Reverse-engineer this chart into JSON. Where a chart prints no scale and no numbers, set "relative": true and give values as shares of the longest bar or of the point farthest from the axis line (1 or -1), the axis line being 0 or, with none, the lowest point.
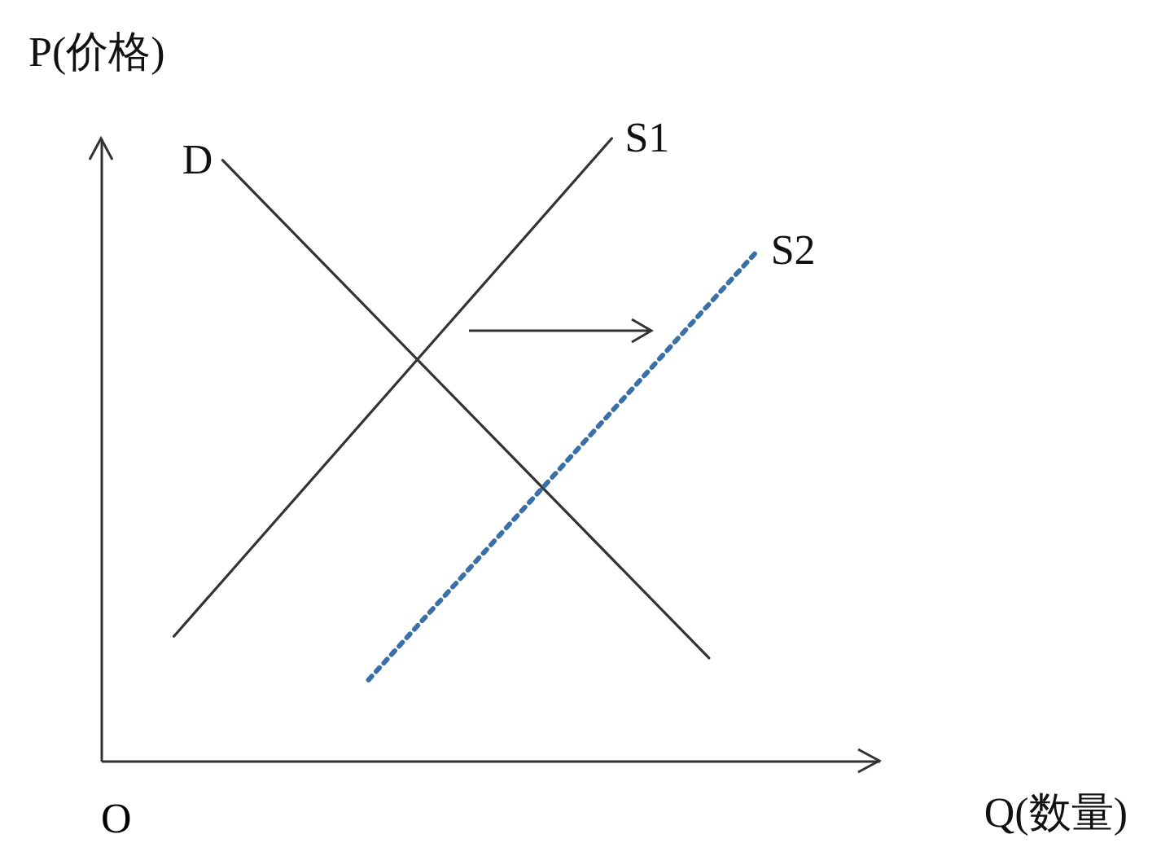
{
  "chart_data": {
    "type": "line",
    "relative": true,
    "xlabel": "Q(数量)",
    "ylabel": "P(价格)",
    "annotations": [
      "O"
    ],
    "categories": [
      null,
      null,
      null,
      null,
      null,
      null,
      null,
      null,
      null,
      null,
      null,
      null,
      null,
      null,
      null,
      null
    ],
    "series": [
      {
        "name": "D",
        "color": "#333333",
        "line_style": "solid",
        "values": [
          null,
          null,
          0.965,
          null,
          null,
          null,
          null,
          null,
          null,
          null,
          null,
          null,
          0.165,
          null,
          null,
          null
        ]
      },
      {
        "name": "S1",
        "color": "#333333",
        "line_style": "solid",
        "values": [
          null,
          0.2,
          null,
          null,
          null,
          null,
          null,
          null,
          null,
          null,
          1,
          null,
          null,
          null,
          null,
          null
        ]
      },
      {
        "name": "S2",
        "color": "#3a6fa8",
        "line_style": "dotted",
        "values": [
          null,
          null,
          null,
          null,
          null,
          0.13,
          null,
          null,
          null,
          null,
          null,
          null,
          null,
          0.82,
          null,
          null
        ]
      }
    ],
    "marker": "none"
  }
}
